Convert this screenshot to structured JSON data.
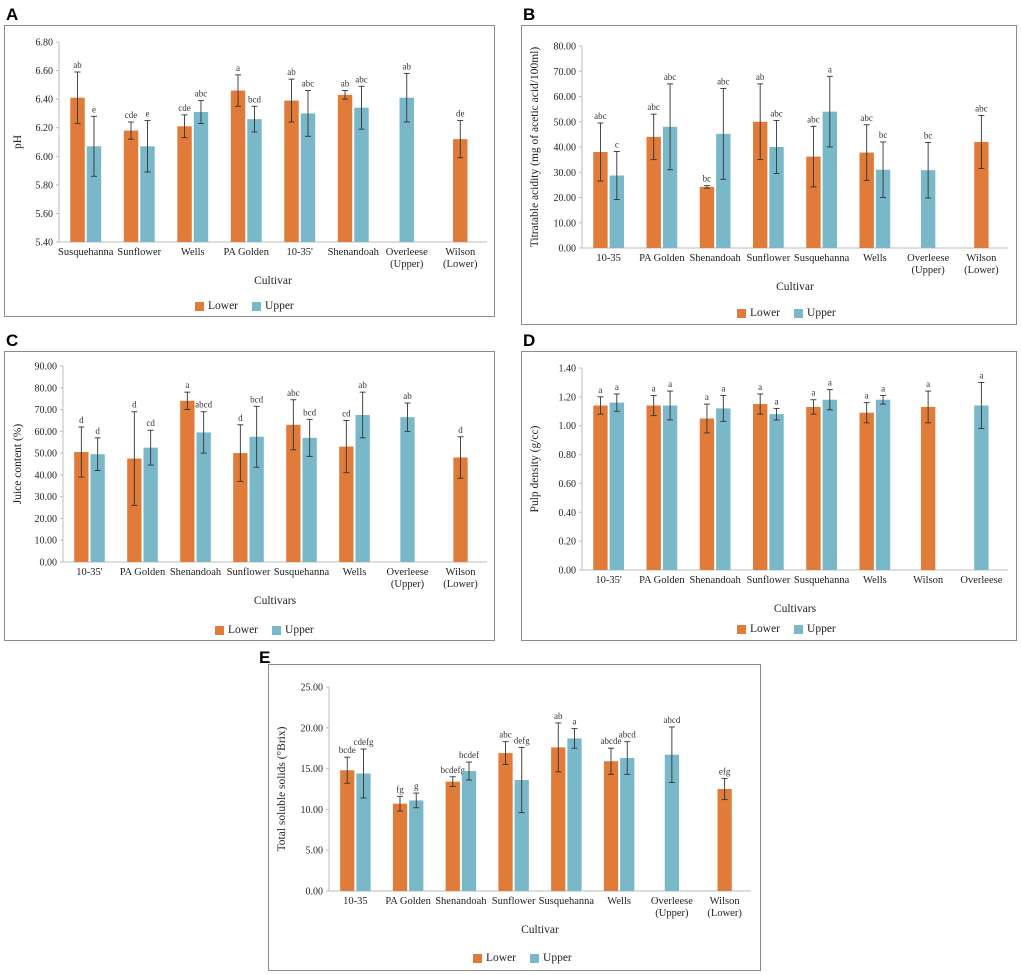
{
  "colors": {
    "lower": "#e07b39",
    "upper": "#79b8c8",
    "axis": "#bdbdbd",
    "error": "#333333"
  },
  "chart_data": [
    {
      "id": "A",
      "panel_label": "A",
      "type": "bar",
      "ylabel": "pH",
      "xlabel": "Cultivar",
      "ylim": [
        5.4,
        6.8
      ],
      "yticks": [
        5.4,
        5.6,
        5.8,
        6.0,
        6.2,
        6.4,
        6.6,
        6.8
      ],
      "decimals": 2,
      "categories": [
        "Susquehanna",
        "Sunflower",
        "Wells",
        "PA Golden",
        "10-35'",
        "Shenandoah",
        "Overleese\n(Upper)",
        "Wilson\n(Lower)"
      ],
      "legend": [
        "Lower",
        "Upper"
      ],
      "series": [
        {
          "name": "Lower",
          "values": [
            6.41,
            6.18,
            6.21,
            6.46,
            6.39,
            6.43,
            null,
            6.12
          ],
          "errors": [
            0.18,
            0.06,
            0.08,
            0.11,
            0.15,
            0.03,
            null,
            0.13
          ],
          "letters": [
            "ab",
            "cde",
            "cde",
            "a",
            "ab",
            "ab",
            null,
            "de"
          ]
        },
        {
          "name": "Upper",
          "values": [
            6.07,
            6.07,
            6.31,
            6.26,
            6.3,
            6.34,
            6.41,
            null
          ],
          "errors": [
            0.21,
            0.18,
            0.08,
            0.09,
            0.16,
            0.15,
            0.17,
            null
          ],
          "letters": [
            "e",
            "e",
            "abc",
            "bcd",
            "abc",
            "abc",
            "ab",
            null
          ]
        }
      ]
    },
    {
      "id": "B",
      "panel_label": "B",
      "type": "bar",
      "ylabel": "Titratable acidity (mg of acetic acid/100ml)",
      "xlabel": "Cultivar",
      "ylim": [
        0,
        80
      ],
      "yticks": [
        0,
        10,
        20,
        30,
        40,
        50,
        60,
        70,
        80
      ],
      "decimals": 2,
      "categories": [
        "10-35",
        "PA Golden",
        "Shenandoah",
        "Sunflower",
        "Susquehanna",
        "Wells",
        "Overleese\n(Upper)",
        "Wilson\n(Lower)"
      ],
      "legend": [
        "Lower",
        "Upper"
      ],
      "series": [
        {
          "name": "Lower",
          "values": [
            38.0,
            44.0,
            24.2,
            50.0,
            36.2,
            37.8,
            null,
            42.0
          ],
          "errors": [
            11.5,
            9.0,
            0.5,
            15.0,
            12.0,
            11.0,
            null,
            10.5
          ],
          "letters": [
            "abc",
            "abc",
            "bc",
            "ab",
            "abc",
            "abc",
            null,
            "abc"
          ]
        },
        {
          "name": "Upper",
          "values": [
            28.7,
            48.0,
            45.2,
            40.0,
            54.0,
            31.0,
            30.8,
            null
          ],
          "errors": [
            9.5,
            17.0,
            18.0,
            10.5,
            14.0,
            11.0,
            11.0,
            null
          ],
          "letters": [
            "c",
            "abc",
            "abc",
            "abc",
            "a",
            "bc",
            "bc",
            null
          ]
        }
      ]
    },
    {
      "id": "C",
      "panel_label": "C",
      "type": "bar",
      "ylabel": "Juice content (%)",
      "xlabel": "Cultivars",
      "ylim": [
        0,
        90
      ],
      "yticks": [
        0,
        10,
        20,
        30,
        40,
        50,
        60,
        70,
        80,
        90
      ],
      "decimals": 2,
      "categories": [
        "10-35'",
        "PA Golden",
        "Shenandoah",
        "Sunflower",
        "Susquehanna",
        "Wells",
        "Overleese\n(Upper)",
        "Wilson\n(Lower)"
      ],
      "legend": [
        "Lower",
        "Upper"
      ],
      "series": [
        {
          "name": "Lower",
          "values": [
            50.5,
            47.5,
            74.0,
            50.0,
            63.0,
            53.0,
            null,
            48.0
          ],
          "errors": [
            11.5,
            21.5,
            4.0,
            13.0,
            11.5,
            12.0,
            null,
            9.5
          ],
          "letters": [
            "d",
            "d",
            "a",
            "d",
            "abc",
            "cd",
            null,
            "d"
          ]
        },
        {
          "name": "Upper",
          "values": [
            49.5,
            52.5,
            59.5,
            57.5,
            57.0,
            67.5,
            66.5,
            null
          ],
          "errors": [
            7.5,
            8.0,
            9.5,
            14.0,
            8.5,
            10.5,
            6.5,
            null
          ],
          "letters": [
            "d",
            "cd",
            "abcd",
            "bcd",
            "bcd",
            "ab",
            "ab",
            null
          ]
        }
      ]
    },
    {
      "id": "D",
      "panel_label": "D",
      "type": "bar",
      "ylabel": "Pulp density (g/cc)",
      "xlabel": "Cultivars",
      "ylim": [
        0,
        1.4
      ],
      "yticks": [
        0,
        0.2,
        0.4,
        0.6,
        0.8,
        1.0,
        1.2,
        1.4
      ],
      "decimals": 2,
      "categories": [
        "10-35'",
        "PA Golden",
        "Shenandoah",
        "Sunflower",
        "Susquehanna",
        "Wells",
        "Wilson",
        "Overleese"
      ],
      "legend": [
        "Lower",
        "Upper"
      ],
      "series": [
        {
          "name": "Lower",
          "values": [
            1.14,
            1.14,
            1.05,
            1.15,
            1.13,
            1.09,
            1.13,
            null
          ],
          "errors": [
            0.06,
            0.07,
            0.1,
            0.07,
            0.05,
            0.07,
            0.11,
            null
          ],
          "letters": [
            "a",
            "a",
            "a",
            "a",
            "a",
            "a",
            "a",
            null
          ]
        },
        {
          "name": "Upper",
          "values": [
            1.16,
            1.14,
            1.12,
            1.08,
            1.18,
            1.18,
            null,
            1.14
          ],
          "errors": [
            0.06,
            0.1,
            0.09,
            0.04,
            0.07,
            0.03,
            null,
            0.16
          ],
          "letters": [
            "a",
            "a",
            "a",
            "a",
            "a",
            "a",
            null,
            "a"
          ]
        }
      ]
    },
    {
      "id": "E",
      "panel_label": "E",
      "type": "bar",
      "ylabel": "Total soluble solids (°Brix)",
      "xlabel": "Cultivar",
      "ylim": [
        0,
        25
      ],
      "yticks": [
        0,
        5,
        10,
        15,
        20,
        25
      ],
      "decimals": 2,
      "categories": [
        "10-35",
        "PA Golden",
        "Shenandoah",
        "Sunflower",
        "Susquehanna",
        "Wells",
        "Overleese\n(Upper)",
        "Wilson\n(Lower)"
      ],
      "legend": [
        "Lower",
        "Upper"
      ],
      "series": [
        {
          "name": "Lower",
          "values": [
            14.8,
            10.7,
            13.4,
            16.9,
            17.6,
            15.9,
            null,
            12.5
          ],
          "errors": [
            1.6,
            0.9,
            0.6,
            1.4,
            3.0,
            1.6,
            null,
            1.3
          ],
          "letters": [
            "bcde",
            "fg",
            "bcdefg",
            "abc",
            "ab",
            "abcde",
            null,
            "efg"
          ]
        },
        {
          "name": "Upper",
          "values": [
            14.4,
            11.1,
            14.7,
            13.6,
            18.7,
            16.3,
            16.7,
            null
          ],
          "errors": [
            3.0,
            0.9,
            1.1,
            4.0,
            1.2,
            2.0,
            3.4,
            null
          ],
          "letters": [
            "cdefg",
            "g",
            "bcdef",
            "defg",
            "a",
            "abcd",
            "abcd",
            null
          ]
        }
      ]
    }
  ]
}
